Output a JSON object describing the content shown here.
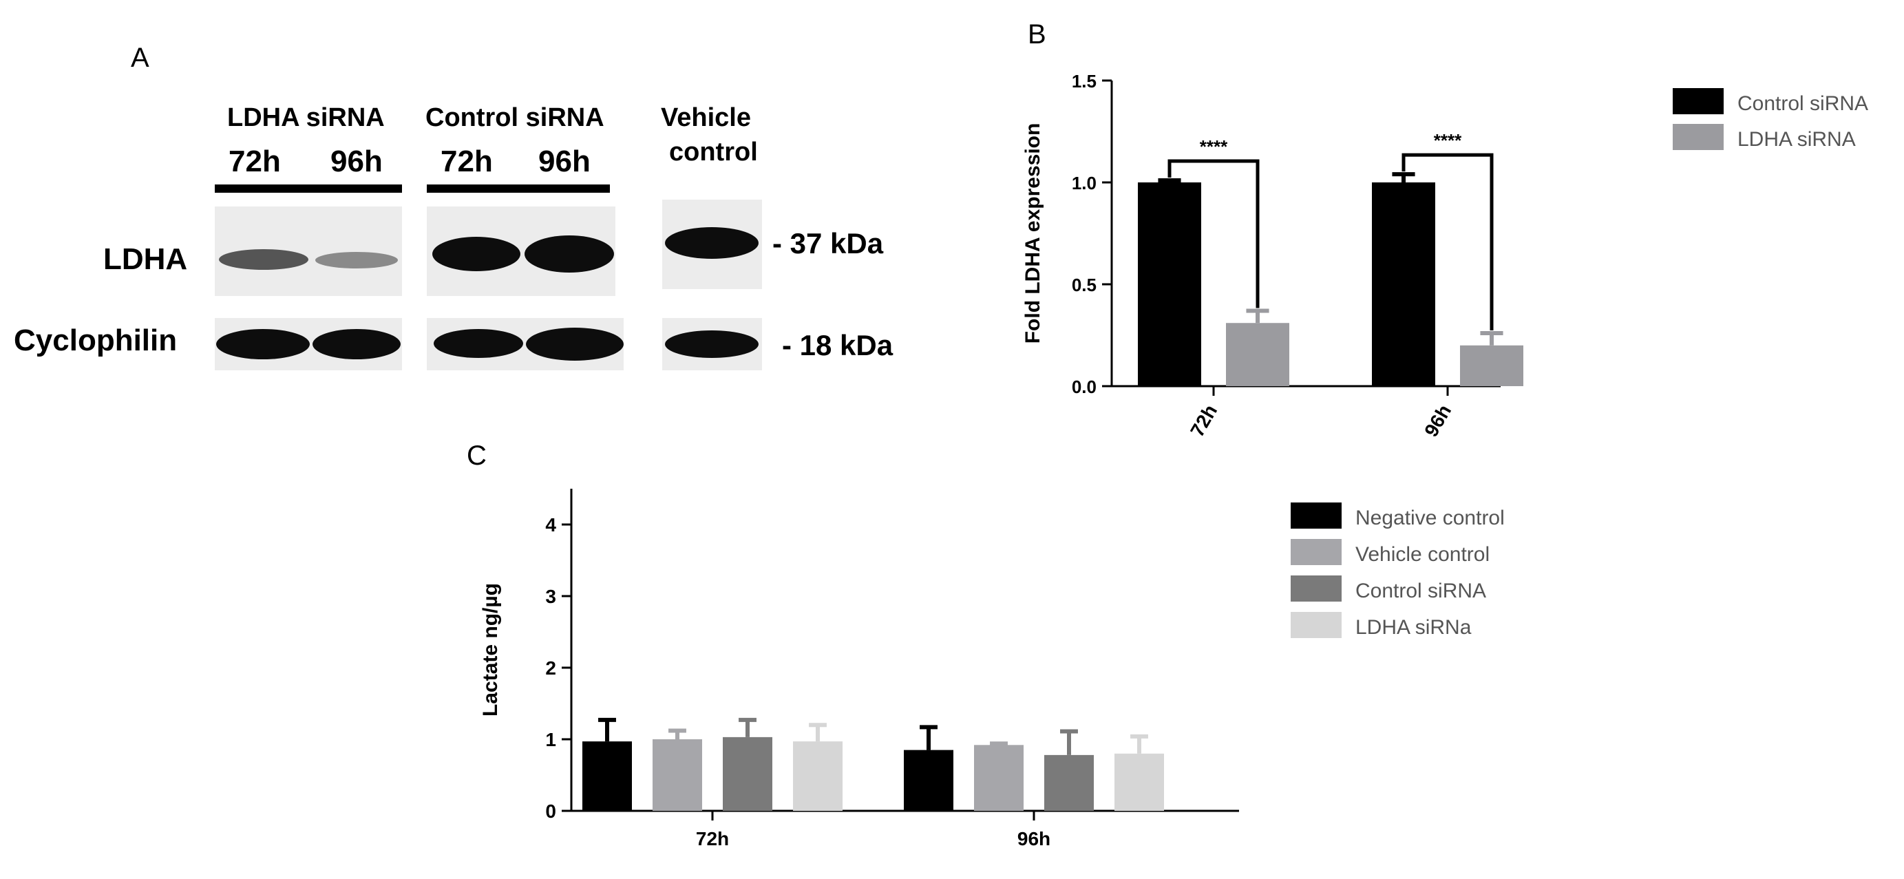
{
  "panels": {
    "a": "A",
    "b": "B",
    "c": "C"
  },
  "blot": {
    "groups": [
      {
        "label": "LDHA siRNA",
        "times": [
          "72h",
          "96h"
        ]
      },
      {
        "label": "Control siRNA",
        "times": [
          "72h",
          "96h"
        ]
      },
      {
        "label_line1": "Vehicle",
        "label_line2": "control"
      }
    ],
    "rows": [
      "LDHA",
      "Cyclophilin"
    ],
    "markers": [
      "- 37 kDa",
      "- 18 kDa"
    ],
    "ldha_relative_intensity": [
      0.4,
      0.3,
      1.0,
      1.0,
      1.0
    ],
    "cyclophilin_relative_intensity": [
      1.0,
      1.0,
      1.0,
      1.0,
      1.0
    ]
  },
  "chart_data": [
    {
      "type": "bar",
      "categories": [
        "72h",
        "96h"
      ],
      "series": [
        {
          "name": "Control siRNA",
          "color": "#000000",
          "values": [
            1.0,
            1.0
          ],
          "errors": [
            0.01,
            0.04
          ]
        },
        {
          "name": "LDHA siRNA",
          "color": "#9b9b9f",
          "values": [
            0.31,
            0.2
          ],
          "errors": [
            0.06,
            0.06
          ]
        }
      ],
      "ylabel": "Fold LDHA expression",
      "xlabel": "",
      "ylim": [
        0,
        1.5
      ],
      "yticks": [
        "0.0",
        "0.5",
        "1.0",
        "1.5"
      ],
      "significance": [
        "****",
        "****"
      ],
      "legend": "top-right",
      "grid": false
    },
    {
      "type": "bar",
      "categories": [
        "72h",
        "96h"
      ],
      "series": [
        {
          "name": "Negative control",
          "color": "#000000",
          "values": [
            0.97,
            0.85
          ],
          "errors": [
            0.3,
            0.32
          ]
        },
        {
          "name": "Vehicle control",
          "color": "#a6a6aa",
          "values": [
            1.0,
            0.92
          ],
          "errors": [
            0.12,
            0.02
          ]
        },
        {
          "name": "Control siRNA",
          "color": "#7a7a7a",
          "values": [
            1.03,
            0.78
          ],
          "errors": [
            0.24,
            0.33
          ]
        },
        {
          "name": "LDHA siRNa",
          "color": "#d6d6d6",
          "values": [
            0.97,
            0.8
          ],
          "errors": [
            0.23,
            0.24
          ]
        }
      ],
      "ylabel": "Lactate ng/µg",
      "xlabel": "",
      "ylim": [
        0,
        4.5
      ],
      "yticks": [
        "0",
        "1",
        "2",
        "3",
        "4"
      ],
      "legend": "right",
      "grid": false
    }
  ]
}
